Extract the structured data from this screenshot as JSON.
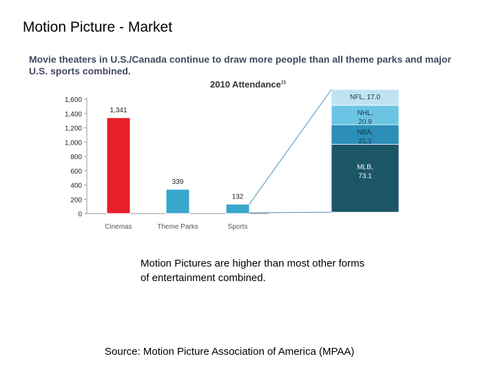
{
  "slide": {
    "title": "Motion Picture - Market",
    "caption": "Motion Pictures are higher than most other forms of entertainment combined.",
    "source": "Source: Motion Picture Association of America (MPAA)"
  },
  "chart_data": {
    "type": "bar",
    "headline": "Movie theaters in U.S./Canada continue to draw more people than all theme parks and major U.S. sports combined.",
    "title": "2010 Attendance",
    "title_footnote": "11",
    "categories": [
      "Cinemas",
      "Theme Parks",
      "Sports"
    ],
    "values": [
      1341,
      339,
      132
    ],
    "value_labels": [
      "1,341",
      "339",
      "132"
    ],
    "bar_colors": [
      "#e8202a",
      "#3aa7cc",
      "#3aa7cc"
    ],
    "yticks": [
      0,
      200,
      400,
      600,
      800,
      1000,
      1200,
      1400,
      1600
    ],
    "ytick_labels": [
      "0",
      "200",
      "400",
      "600",
      "800",
      "1,000",
      "1,200",
      "1,400",
      "1,600"
    ],
    "ylim": [
      0,
      1600
    ],
    "xlabel": "",
    "ylabel": "",
    "sports_breakdown": {
      "segments": [
        {
          "name": "MLB",
          "value": 73.1,
          "label_line1": "MLB,",
          "label_line2": "73.1",
          "color": "#1b5566",
          "text_color": "#ffffff"
        },
        {
          "name": "NBA",
          "value": 21.1,
          "label_line1": "NBA,",
          "label_line2": "21.1",
          "color": "#2b8fb8",
          "text_color": "#1c3340"
        },
        {
          "name": "NHL",
          "value": 20.9,
          "label_line1": "NHL,",
          "label_line2": "20.9",
          "color": "#6cc4e4",
          "text_color": "#1c3340"
        },
        {
          "name": "NFL",
          "value": 17.0,
          "label_line1": "NFL, 17.0",
          "label_line2": "",
          "color": "#bfe3f3",
          "text_color": "#1c3340"
        }
      ]
    }
  }
}
